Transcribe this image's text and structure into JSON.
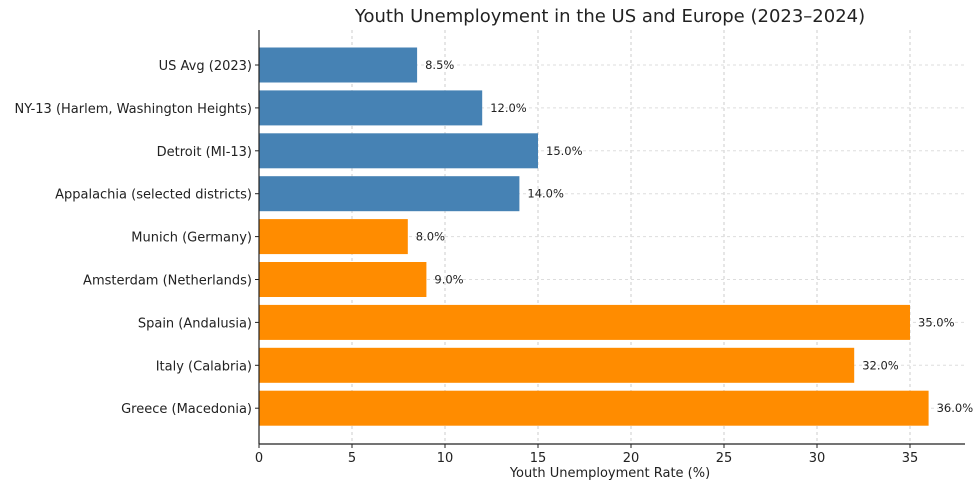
{
  "chart_data": {
    "type": "bar",
    "orientation": "horizontal",
    "title": "Youth Unemployment in the US and Europe (2023–2024)",
    "xlabel": "Youth Unemployment Rate (%)",
    "ylabel": "",
    "categories": [
      "US Avg (2023)",
      "NY-13 (Harlem, Washington Heights)",
      "Detroit (MI-13)",
      "Appalachia (selected districts)",
      "Munich (Germany)",
      "Amsterdam (Netherlands)",
      "Spain (Andalusia)",
      "Italy (Calabria)",
      "Greece (Macedonia)"
    ],
    "values": [
      8.5,
      12.0,
      15.0,
      14.0,
      8.0,
      9.0,
      35.0,
      32.0,
      36.0
    ],
    "data_labels": [
      "8.5%",
      "12.0%",
      "15.0%",
      "14.0%",
      "8.0%",
      "9.0%",
      "35.0%",
      "32.0%",
      "36.0%"
    ],
    "groups": [
      "US",
      "US",
      "US",
      "US",
      "Europe",
      "Europe",
      "Europe",
      "Europe",
      "Europe"
    ],
    "colors": {
      "US": "#4682b4",
      "Europe": "#ff8c00"
    },
    "xlim": [
      0,
      37.8
    ],
    "xticks": [
      0,
      5,
      10,
      15,
      20,
      25,
      30,
      35
    ],
    "grid": true
  }
}
